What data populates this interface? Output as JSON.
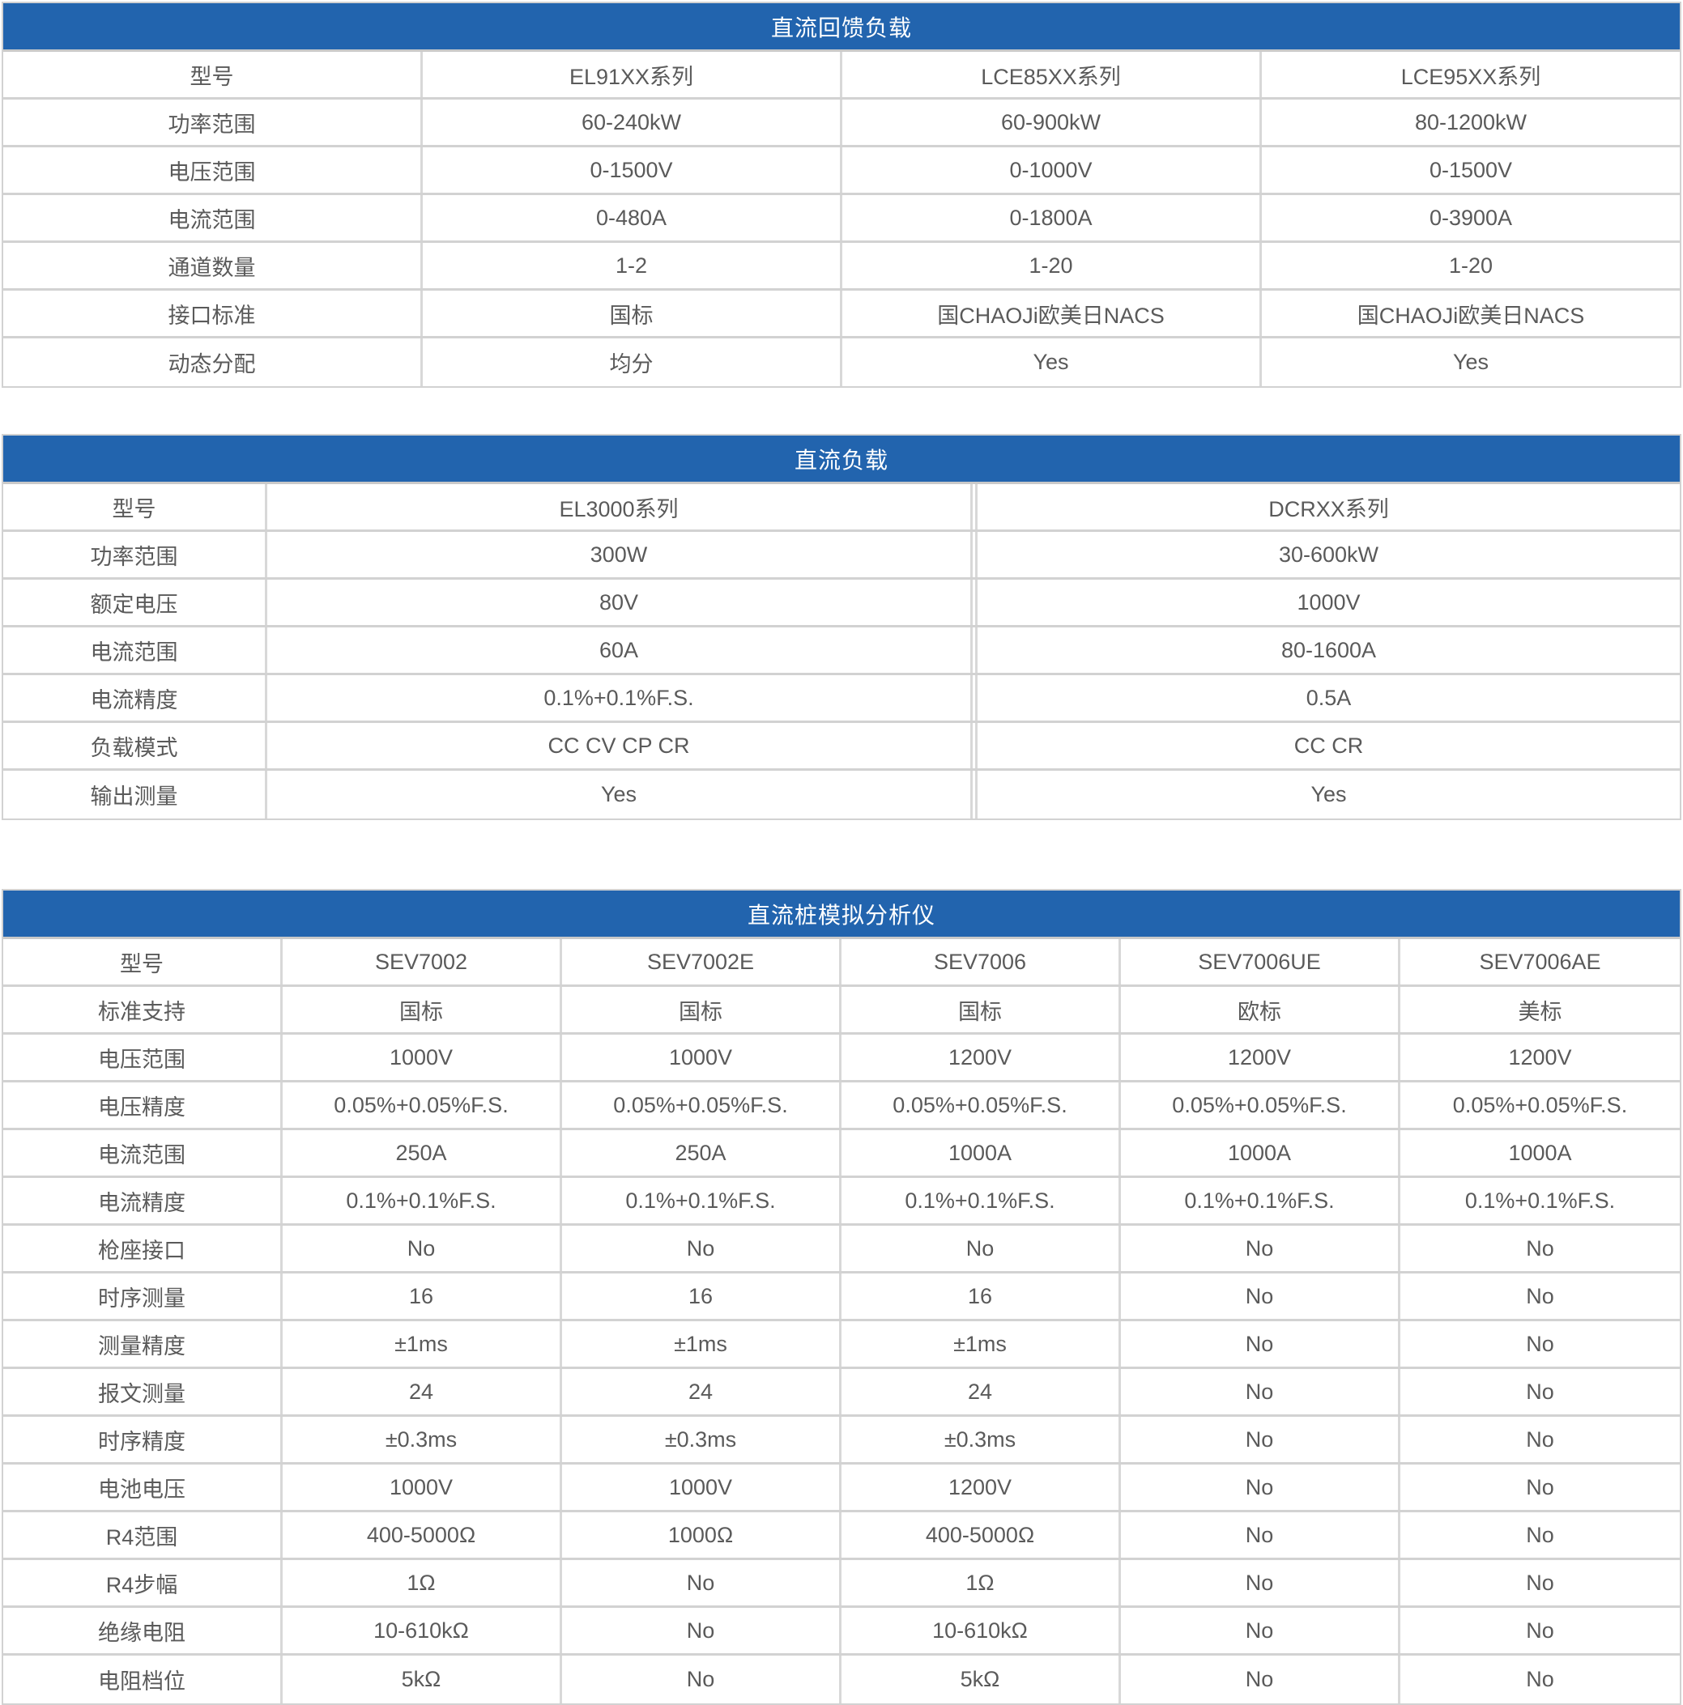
{
  "colors": {
    "header_bg": "#2264ae",
    "header_text": "#ffffff",
    "border": "#d2d2d2",
    "text": "#5a5a5a"
  },
  "tables": [
    {
      "title": "直流回馈负载",
      "rows": [
        [
          "型号",
          "EL91XX系列",
          "LCE85XX系列",
          "LCE95XX系列"
        ],
        [
          "功率范围",
          "60-240kW",
          "60-900kW",
          "80-1200kW"
        ],
        [
          "电压范围",
          "0-1500V",
          "0-1000V",
          "0-1500V"
        ],
        [
          "电流范围",
          "0-480A",
          "0-1800A",
          "0-3900A"
        ],
        [
          "通道数量",
          "1-2",
          "1-20",
          "1-20"
        ],
        [
          "接口标准",
          "国标",
          "国CHAOJi欧美日NACS",
          "国CHAOJi欧美日NACS"
        ],
        [
          "动态分配",
          "均分",
          "Yes",
          "Yes"
        ]
      ]
    },
    {
      "title": "直流负载",
      "rows": [
        [
          "型号",
          "EL3000系列",
          "DCRXX系列"
        ],
        [
          "功率范围",
          "300W",
          "30-600kW"
        ],
        [
          "额定电压",
          "80V",
          "1000V"
        ],
        [
          "电流范围",
          "60A",
          "80-1600A"
        ],
        [
          "电流精度",
          "0.1%+0.1%F.S.",
          "0.5A"
        ],
        [
          "负载模式",
          "CC CV CP CR",
          "CC CR"
        ],
        [
          "输出测量",
          "Yes",
          "Yes"
        ]
      ]
    },
    {
      "title": "直流桩模拟分析仪",
      "rows": [
        [
          "型号",
          "SEV7002",
          "SEV7002E",
          "SEV7006",
          "SEV7006UE",
          "SEV7006AE"
        ],
        [
          "标准支持",
          "国标",
          "国标",
          "国标",
          "欧标",
          "美标"
        ],
        [
          "电压范围",
          "1000V",
          "1000V",
          "1200V",
          "1200V",
          "1200V"
        ],
        [
          "电压精度",
          "0.05%+0.05%F.S.",
          "0.05%+0.05%F.S.",
          "0.05%+0.05%F.S.",
          "0.05%+0.05%F.S.",
          "0.05%+0.05%F.S."
        ],
        [
          "电流范围",
          "250A",
          "250A",
          "1000A",
          "1000A",
          "1000A"
        ],
        [
          "电流精度",
          "0.1%+0.1%F.S.",
          "0.1%+0.1%F.S.",
          "0.1%+0.1%F.S.",
          "0.1%+0.1%F.S.",
          "0.1%+0.1%F.S."
        ],
        [
          "枪座接口",
          "No",
          "No",
          "No",
          "No",
          "No"
        ],
        [
          "时序测量",
          "16",
          "16",
          "16",
          "No",
          "No"
        ],
        [
          "测量精度",
          "±1ms",
          "±1ms",
          "±1ms",
          "No",
          "No"
        ],
        [
          "报文测量",
          "24",
          "24",
          "24",
          "No",
          "No"
        ],
        [
          "时序精度",
          "±0.3ms",
          "±0.3ms",
          "±0.3ms",
          "No",
          "No"
        ],
        [
          "电池电压",
          "1000V",
          "1000V",
          "1200V",
          "No",
          "No"
        ],
        [
          "R4范围",
          "400-5000Ω",
          "1000Ω",
          "400-5000Ω",
          "No",
          "No"
        ],
        [
          "R4步幅",
          "1Ω",
          "No",
          "1Ω",
          "No",
          "No"
        ],
        [
          "绝缘电阻",
          "10-610kΩ",
          "No",
          "10-610kΩ",
          "No",
          "No"
        ],
        [
          "电阻档位",
          "5kΩ",
          "No",
          "5kΩ",
          "No",
          "No"
        ]
      ]
    }
  ]
}
